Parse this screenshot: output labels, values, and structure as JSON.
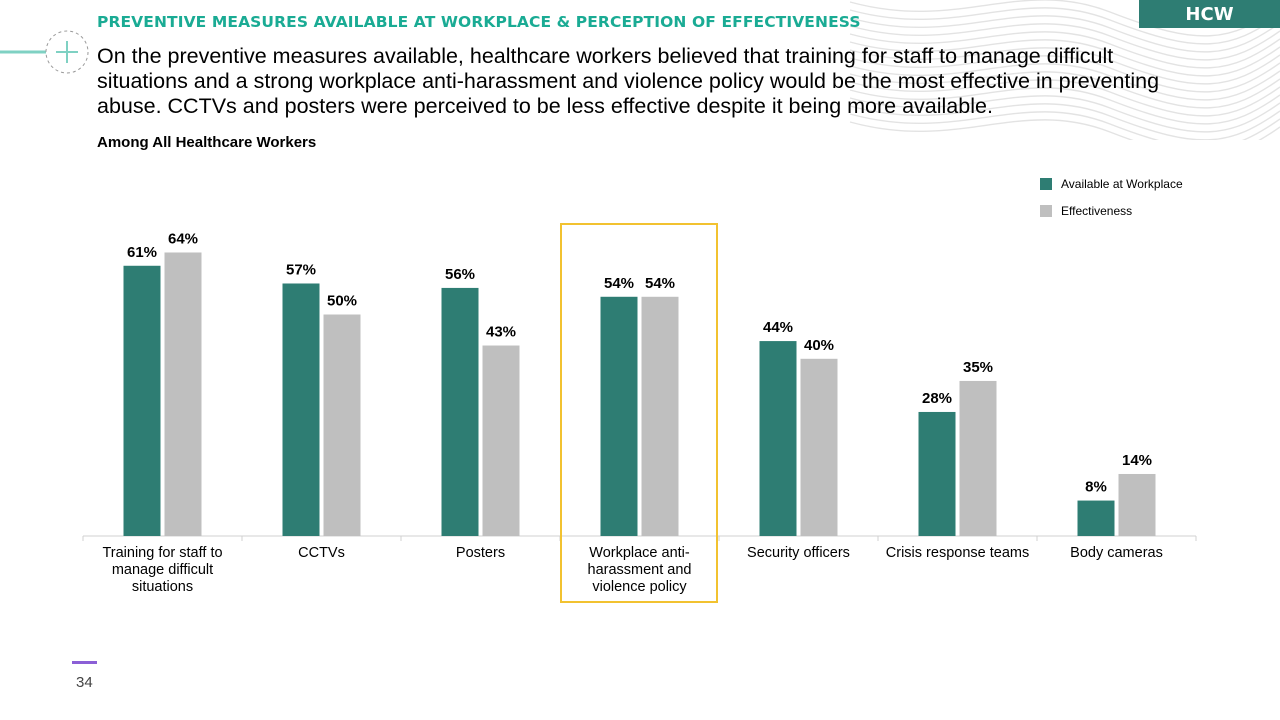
{
  "header": {
    "section_title": "PREVENTIVE MEASURES AVAILABLE AT WORKPLACE & PERCEPTION OF EFFECTIVENESS",
    "badge": "HCW",
    "summary": "On the preventive measures available, healthcare workers believed that training for staff to manage difficult situations and a strong workplace anti-harassment and violence policy would be the most effective in preventing abuse. CCTVs and posters were perceived to be less effective despite it being more available."
  },
  "icons": {
    "plus": "plus-circle-icon",
    "decoration": "wave-lines-decoration"
  },
  "colors": {
    "accent": "#1aab94",
    "series1": "#2e7d73",
    "series2": "#bfbfbf",
    "highlight": "#f2c230",
    "page_marker": "#8b5fd6"
  },
  "chart_data": {
    "type": "bar",
    "title": "Among All Healthcare Workers",
    "categories": [
      "Training for staff to manage difficult situations",
      "CCTVs",
      "Posters",
      "Workplace anti-harassment and violence policy",
      "Security officers",
      "Crisis response teams",
      "Body cameras"
    ],
    "series": [
      {
        "name": "Available at Workplace",
        "values": [
          61,
          57,
          56,
          54,
          44,
          28,
          8
        ],
        "color": "#2e7d73"
      },
      {
        "name": "Effectiveness",
        "values": [
          64,
          50,
          43,
          54,
          40,
          35,
          14
        ],
        "color": "#bfbfbf"
      }
    ],
    "value_suffix": "%",
    "ylim": [
      0,
      70
    ],
    "grid": false,
    "legend_position": "top-right",
    "highlighted_category": "Workplace anti-harassment and violence policy"
  },
  "footer": {
    "page_number": "34"
  }
}
